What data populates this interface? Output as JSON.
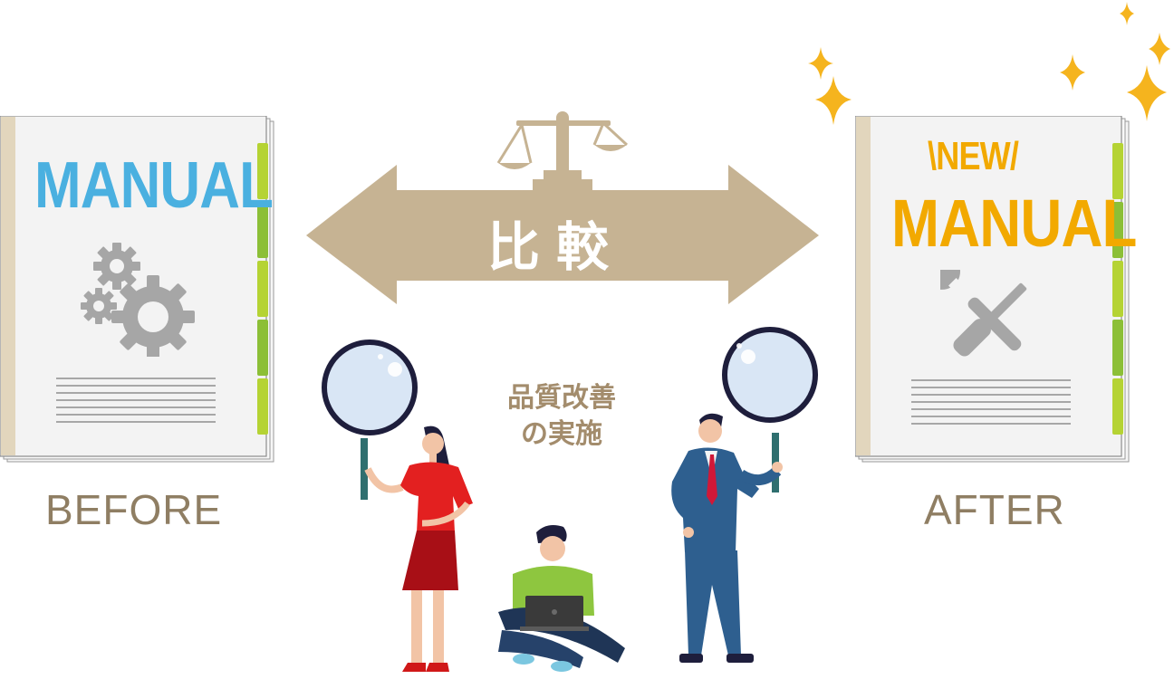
{
  "before": {
    "manual_title": "MANUAL",
    "caption": "BEFORE",
    "icon": "gears-icon",
    "title_color": "#4ab0e0"
  },
  "after": {
    "badge": "\\NEW/",
    "manual_title": "MANUAL",
    "caption": "AFTER",
    "icon": "wrench-screwdriver-icon",
    "title_color": "#f2a900"
  },
  "compare": {
    "label": "比較",
    "icon": "balance-scale-icon",
    "arrow_color": "#c6b393"
  },
  "center_note": {
    "line1": "品質改善",
    "line2": "の実施"
  },
  "sparkle_color": "#f5b41e"
}
